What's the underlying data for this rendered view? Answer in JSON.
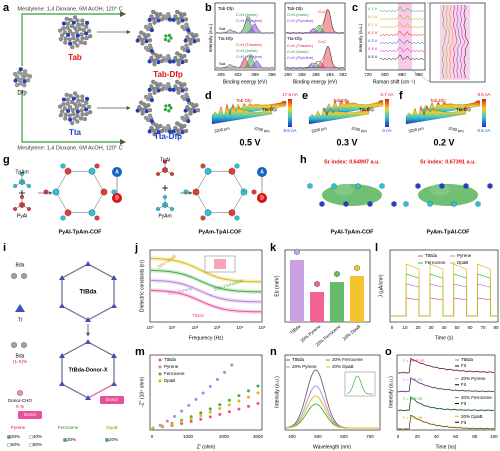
{
  "panels": {
    "a": {
      "texts": [
        "a",
        "Mesitylene: 1,4 Dioxane, 6M AcOH, 120° C",
        "Dfp",
        "Tab",
        "Tab-Dfp",
        "Tta",
        "Tta-Dfp",
        "Mesitylene: 1,4 Dioxane, 6M AcOH, 120° C"
      ]
    },
    "b": {
      "texts": [
        "b",
        "Intensity (a.u.)",
        "Tab-Dfp",
        "C=N (Imine)",
        "C=N (Pyridine)",
        "Sat.",
        "Tta-Dfp",
        "C=N (Triazine)",
        "C=N (Imine)",
        "C=N (Pyridine)",
        "Sat.",
        "405",
        "402",
        "399",
        "396",
        "Binding energy (eV)",
        "Tab-Dfp",
        "C=C",
        "C=N (Imine)",
        "C=N (Pyridine)",
        "Tta-Dfp",
        "C=C",
        "C=N (Triazine)",
        "C=N (Imine)",
        "C=N (Pyridine)",
        "290",
        "288",
        "286",
        "284",
        "282",
        "Binding energy (eV)"
      ]
    },
    "c": {
      "texts": [
        "c",
        "Intensity (a.u.)",
        "0.1 V",
        "0.0 V",
        "0.1 V",
        "0.2 V",
        "0.3 V",
        "0.4 V",
        "0.5 V",
        "720",
        "800",
        "880",
        "960",
        "Raman shift (cm⁻¹)"
      ]
    },
    "d": {
      "texts": [
        "d",
        "Tab-Dfp",
        "Tta-Dfp",
        "17.6 nA",
        "8.6 nA",
        "3200 μm",
        "3200 μm",
        "0.5 V"
      ]
    },
    "e": {
      "texts": [
        "e",
        "Tab-Dfp",
        "Tta-Dfp",
        "0.7 nA",
        "0 nA",
        "3200 μm",
        "3200 μm",
        "0.3 V"
      ]
    },
    "f": {
      "texts": [
        "f",
        "Tab-Dfp",
        "Tta-Dfp",
        "9.5 nA",
        "0.5 nA",
        "3200 μm",
        "3200 μm",
        "0.2 V"
      ]
    },
    "g": {
      "texts": [
        "g",
        "TpAm",
        "PyAl",
        "PyAl-TpAm-COF",
        "TpAl",
        "PyAm",
        "PyAm-TpAl-COF",
        "A",
        "D",
        "A",
        "D"
      ]
    },
    "h": {
      "texts": [
        "h",
        "Sr index: 0.64997 a.u.",
        "Sr index: 0.67391 a.u.",
        "PyAl-TpAm-COF",
        "PyAm-TpAl-COF"
      ]
    },
    "i": {
      "texts": [
        "i",
        "Bda",
        "Tt",
        "Bda",
        "(1-X)%",
        "Donor-CHO",
        "X %",
        "TtBda",
        "TtBda-Donor-X",
        "Donor",
        "Donor",
        "Pyrene",
        "Ferrocene",
        "DpaB",
        "20%",
        "40%",
        "60%",
        "80%",
        "20%",
        "20%"
      ]
    },
    "j": {
      "texts": [
        "j",
        "Dielectric constants (εr)",
        "Frequency (Hz)",
        "TtBda",
        "20% Pyrene",
        "20% Ferrocene",
        "20% DpaB",
        "10⁰",
        "10¹",
        "10²",
        "10³",
        "10⁴",
        "10⁵"
      ]
    },
    "k": {
      "texts": [
        "k",
        "Eb (meV)",
        "TtBda",
        "20% Pyrene",
        "20% Ferrocene",
        "20% DpaB"
      ]
    },
    "l": {
      "texts": [
        "l",
        "J (μA/cm²)",
        "Time (s)",
        "TtBda",
        "Pyrene",
        "Ferrocene",
        "DpaB",
        "0",
        "10",
        "20",
        "30",
        "40",
        "50",
        "60",
        "70",
        "80"
      ]
    },
    "m": {
      "texts": [
        "m",
        "-Z'' (10⁴ ohm)",
        "Z' (ohm)",
        "TtBda",
        "Pyrene",
        "Ferrocene",
        "DpaB",
        "0",
        "1000",
        "2000",
        "3000"
      ]
    },
    "n": {
      "texts": [
        "n",
        "Intensity (a.u.)",
        "Wavelength (nm)",
        "TtBda",
        "20% Pyrene",
        "20% Ferrocene",
        "20% DpaB",
        "400",
        "500",
        "600",
        "700"
      ]
    },
    "o": {
      "texts": [
        "o",
        "Intensity (a.u.)",
        "Time (ns)",
        "τ = 10.6 ns",
        "TtBda",
        "Fit",
        "τ = 7.5 ns",
        "20% Pyrene",
        "Fit",
        "τ = 5.5 ns",
        "20% Ferrocene",
        "Fit",
        "τ = 8.1 ns",
        "20% DpaB",
        "Fit",
        "0",
        "20",
        "40",
        "60",
        "80",
        "100"
      ]
    }
  }
}
